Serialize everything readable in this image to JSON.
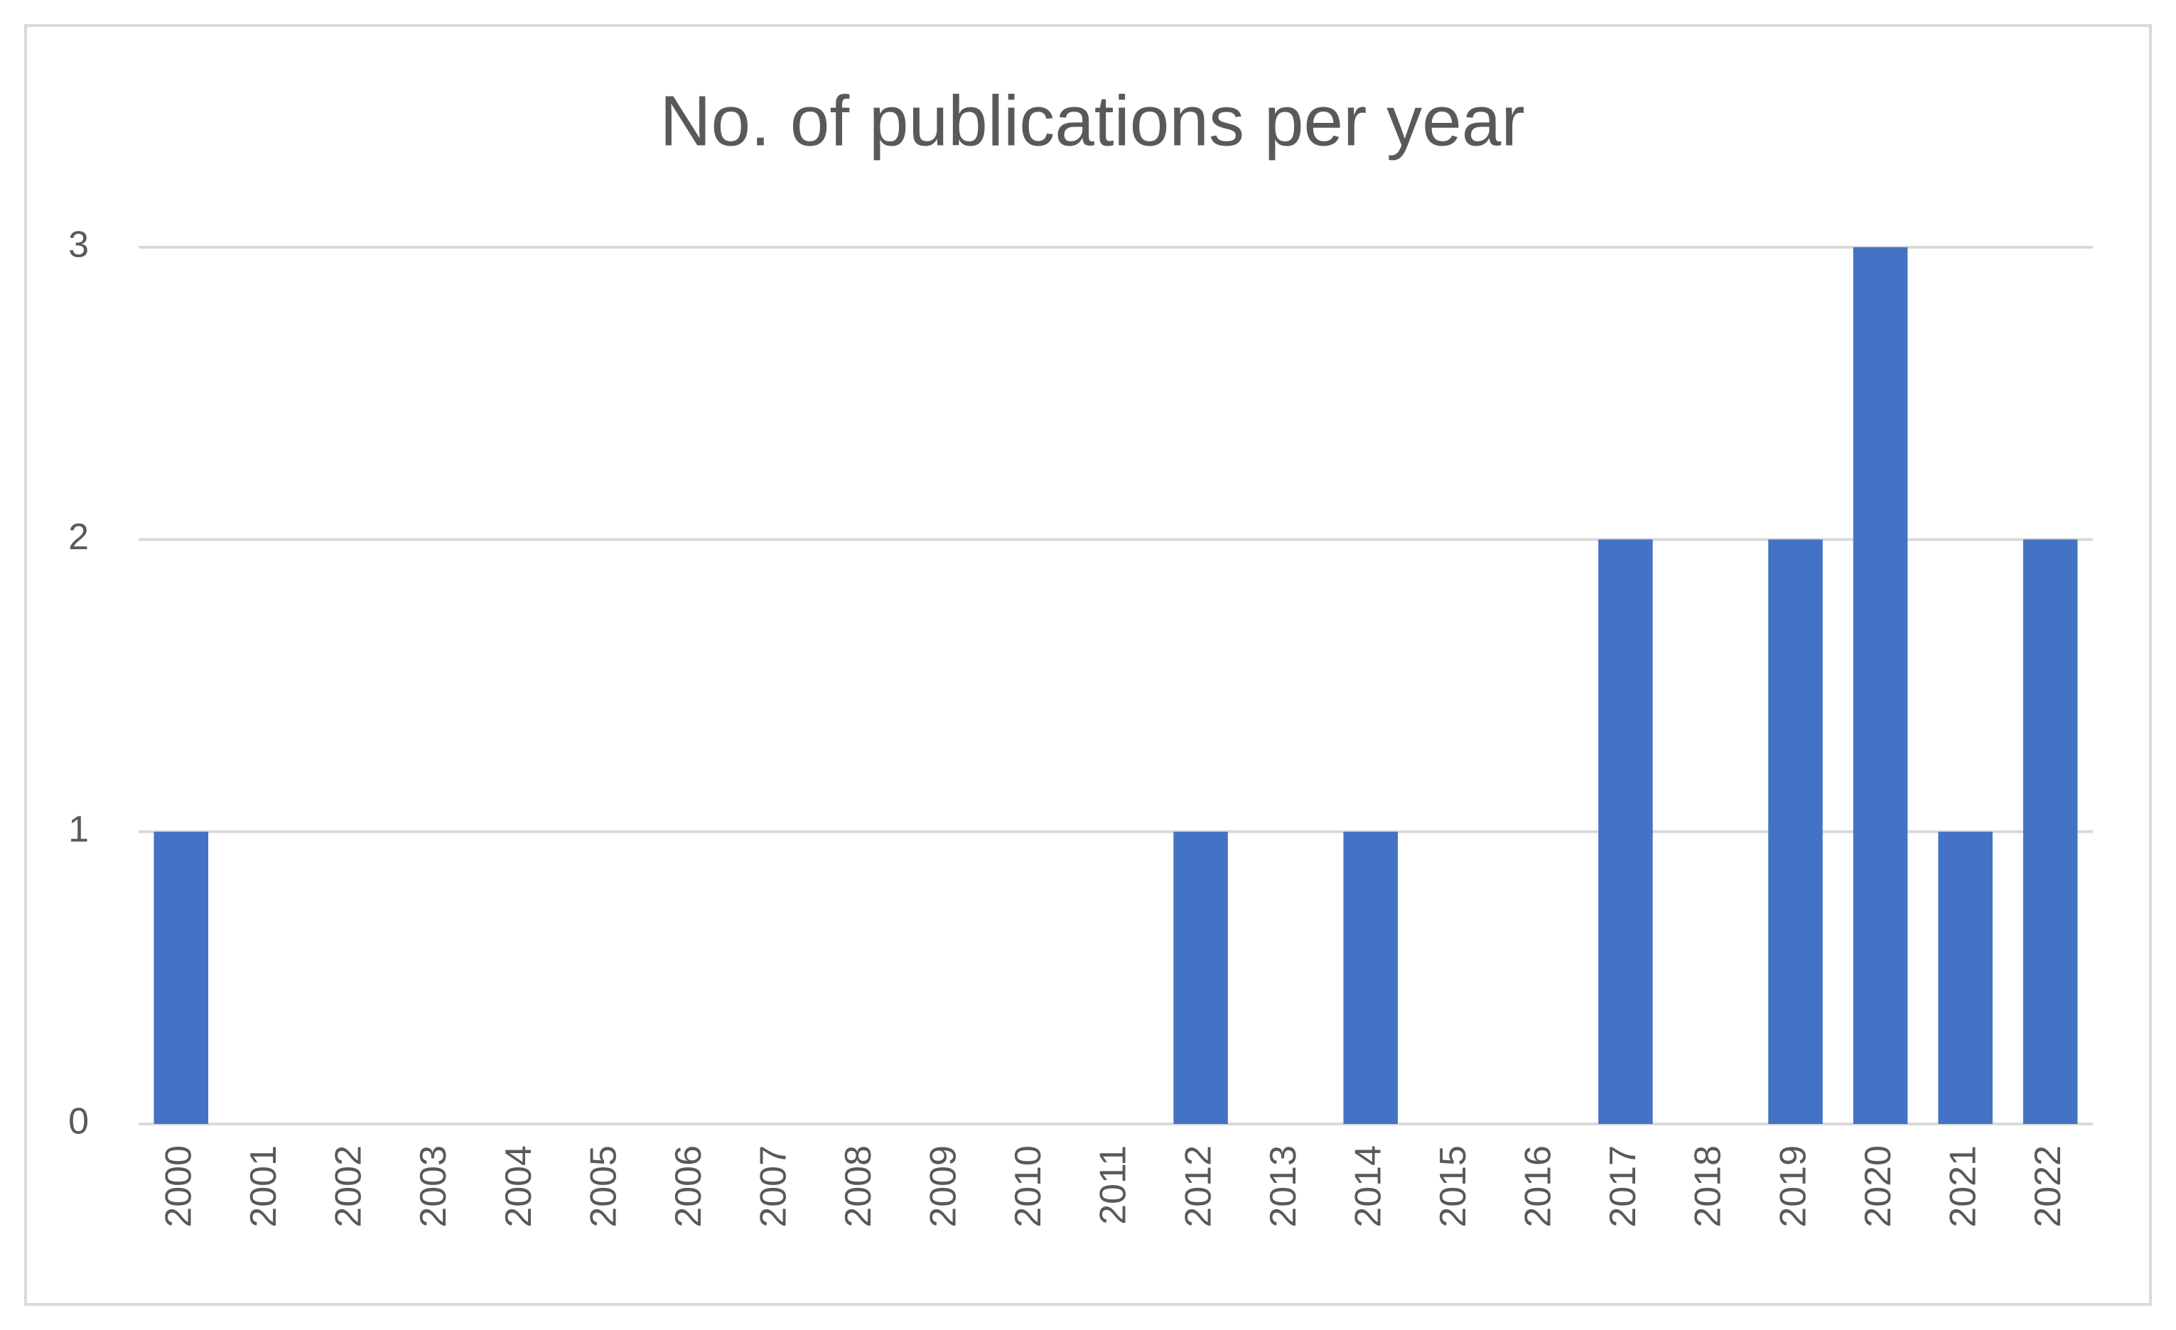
{
  "chart_data": {
    "type": "bar",
    "title": "No. of publications per year",
    "categories": [
      "2000",
      "2001",
      "2002",
      "2003",
      "2004",
      "2005",
      "2006",
      "2007",
      "2008",
      "2009",
      "2010",
      "2011",
      "2012",
      "2013",
      "2014",
      "2015",
      "2016",
      "2017",
      "2018",
      "2019",
      "2020",
      "2021",
      "2022"
    ],
    "values": [
      1,
      0,
      0,
      0,
      0,
      0,
      0,
      0,
      0,
      0,
      0,
      0,
      1,
      0,
      1,
      0,
      0,
      2,
      0,
      2,
      3,
      1,
      2
    ],
    "color": "#4472c4",
    "ylim": [
      0,
      3
    ],
    "yticks": [
      0,
      1,
      2,
      3
    ],
    "grid": true
  }
}
